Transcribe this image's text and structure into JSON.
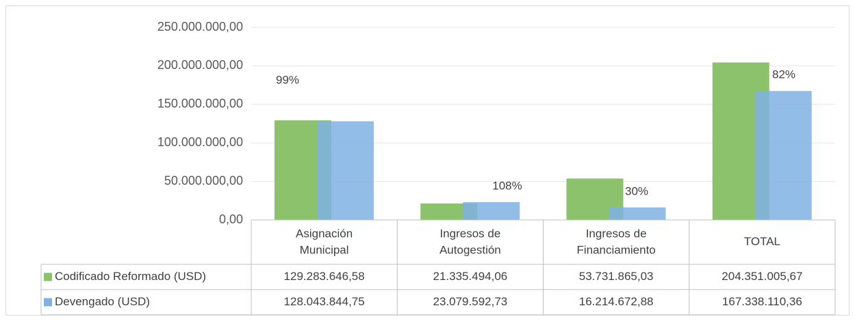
{
  "chart_data": {
    "type": "bar",
    "categories": [
      "Asignación Municipal",
      "Ingresos de Autogestión",
      "Ingresos de Financiamiento",
      "TOTAL"
    ],
    "series": [
      {
        "name": "Codificado Reformado (USD)",
        "color": "#8dc26c",
        "values": [
          129283646.58,
          21335494.06,
          53731865.03,
          204351005.67
        ],
        "value_labels": [
          "129.283.646,58",
          "21.335.494,06",
          "53.731.865,03",
          "204.351.005,67"
        ]
      },
      {
        "name": "Devengado (USD)",
        "color": "#7fb2e2",
        "values": [
          128043844.75,
          23079592.73,
          16214672.88,
          167338110.36
        ],
        "value_labels": [
          "128.043.844,75",
          "23.079.592,73",
          "16.214.672,88",
          "167.338.110,36"
        ]
      }
    ],
    "annotations": [
      "99%",
      "108%",
      "30%",
      "82%"
    ],
    "ylim": [
      0,
      250000000
    ],
    "yticks": [
      {
        "value": 0,
        "label": "0,00"
      },
      {
        "value": 50000000,
        "label": "50.000.000,00"
      },
      {
        "value": 100000000,
        "label": "100.000.000,00"
      },
      {
        "value": 150000000,
        "label": "150.000.000,00"
      },
      {
        "value": 200000000,
        "label": "200.000.000,00"
      },
      {
        "value": 250000000,
        "label": "250.000.000,00"
      }
    ],
    "grid": true
  }
}
